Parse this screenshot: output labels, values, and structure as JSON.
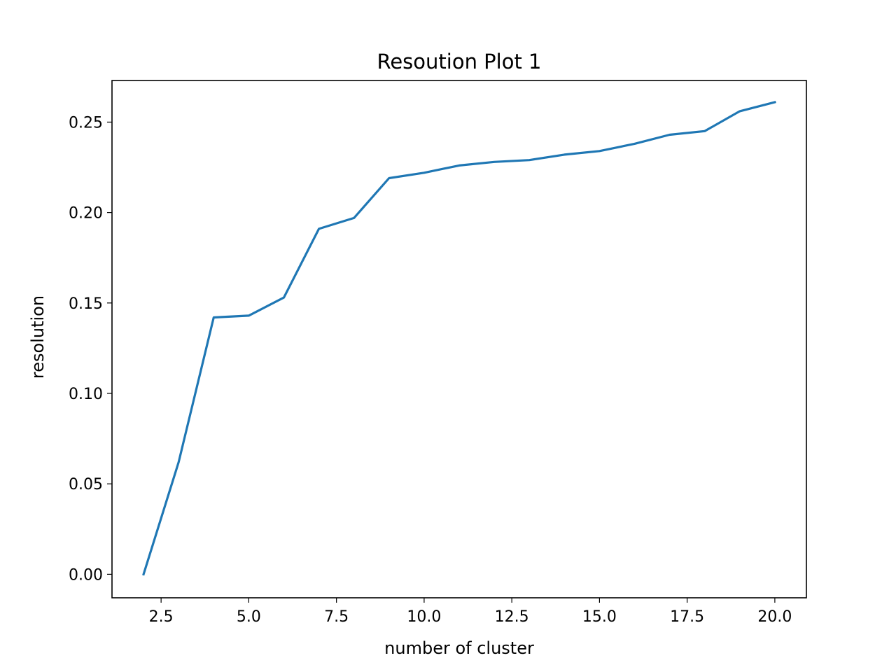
{
  "chart_data": {
    "type": "line",
    "title": "Resoution Plot 1",
    "xlabel": "number of cluster",
    "ylabel": "resolution",
    "xlim": [
      1.1,
      20.9
    ],
    "ylim": [
      -0.013,
      0.273
    ],
    "x_ticks": [
      {
        "value": 2.5,
        "label": "2.5"
      },
      {
        "value": 5.0,
        "label": "5.0"
      },
      {
        "value": 7.5,
        "label": "7.5"
      },
      {
        "value": 10.0,
        "label": "10.0"
      },
      {
        "value": 12.5,
        "label": "12.5"
      },
      {
        "value": 15.0,
        "label": "15.0"
      },
      {
        "value": 17.5,
        "label": "17.5"
      },
      {
        "value": 20.0,
        "label": "20.0"
      }
    ],
    "y_ticks": [
      {
        "value": 0.0,
        "label": "0.00"
      },
      {
        "value": 0.05,
        "label": "0.05"
      },
      {
        "value": 0.1,
        "label": "0.10"
      },
      {
        "value": 0.15,
        "label": "0.15"
      },
      {
        "value": 0.2,
        "label": "0.20"
      },
      {
        "value": 0.25,
        "label": "0.25"
      }
    ],
    "grid": false,
    "series": [
      {
        "color": "#1f77b4",
        "x": [
          2,
          3,
          4,
          5,
          6,
          7,
          8,
          9,
          10,
          11,
          12,
          13,
          14,
          15,
          16,
          17,
          18,
          19,
          20
        ],
        "y": [
          0.0,
          0.062,
          0.142,
          0.143,
          0.153,
          0.191,
          0.197,
          0.219,
          0.222,
          0.226,
          0.228,
          0.229,
          0.232,
          0.234,
          0.238,
          0.243,
          0.245,
          0.256,
          0.261
        ]
      }
    ]
  }
}
